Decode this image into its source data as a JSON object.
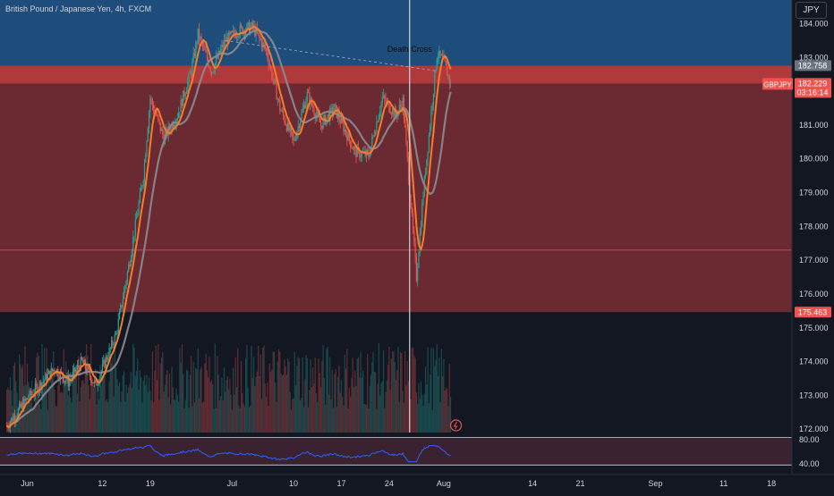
{
  "header": {
    "symbol_description": "British Pound / Japanese Yen, 4h, FXCM"
  },
  "price_axis": {
    "currency": "JPY",
    "ticks": [
      "184.000",
      "183.000",
      "181.000",
      "180.000",
      "179.000",
      "178.000",
      "177.000",
      "176.000",
      "175.000",
      "174.000",
      "173.000",
      "172.000"
    ]
  },
  "labels": {
    "level_upper": "182.758",
    "symbol_tag": "GBPJPY",
    "last_price": "182.229",
    "countdown": "03:16:14",
    "level_lower": "175.463",
    "annotation": "Death Cross"
  },
  "time_axis": {
    "ticks": [
      "Jun",
      "12",
      "19",
      "Jul",
      "10",
      "17",
      "24",
      "Aug",
      "14",
      "21",
      "Sep",
      "11",
      "18"
    ]
  },
  "rsi": {
    "ticks": [
      "80.00",
      "40.00"
    ]
  },
  "colors": {
    "background": "#131722",
    "zone_blue": "#1e4d7b",
    "zone_red": "#6b2a31",
    "band_red": "#b0393c",
    "candle_up": "#26a69a",
    "candle_down": "#ef5350",
    "ema_fast": "#f57c2a",
    "ma_slow": "#8b8b93",
    "rsi_line": "#2962ff",
    "vertical_marker": "#d1d4dc"
  },
  "chart_data": {
    "type": "candlestick",
    "symbol": "GBPJPY",
    "timeframe": "4h",
    "exchange": "FXCM",
    "currency": "JPY",
    "y_range": [
      171.9,
      184.7
    ],
    "zones": {
      "blue_top_zone": [
        182.758,
        184.7
      ],
      "red_zone": [
        175.463,
        182.758
      ],
      "red_band": [
        182.229,
        182.758
      ],
      "line_level": 177.3
    },
    "annotation": {
      "text": "Death Cross",
      "date": "Jul 27"
    },
    "last_price": 182.229,
    "price_path": [
      {
        "t": "May 29",
        "p": 172.1
      },
      {
        "t": "Jun 1",
        "p": 172.9
      },
      {
        "t": "Jun 5",
        "p": 173.8
      },
      {
        "t": "Jun 7",
        "p": 173.4
      },
      {
        "t": "Jun 9",
        "p": 174.0
      },
      {
        "t": "Jun 11",
        "p": 173.3
      },
      {
        "t": "Jun 14",
        "p": 174.8
      },
      {
        "t": "Jun 16",
        "p": 177.0
      },
      {
        "t": "Jun 18",
        "p": 179.5
      },
      {
        "t": "Jun 19",
        "p": 181.8
      },
      {
        "t": "Jun 21",
        "p": 180.6
      },
      {
        "t": "Jun 23",
        "p": 181.3
      },
      {
        "t": "Jun 25",
        "p": 182.6
      },
      {
        "t": "Jun 26",
        "p": 183.7
      },
      {
        "t": "Jun 28",
        "p": 182.6
      },
      {
        "t": "Jun 30",
        "p": 183.5
      },
      {
        "t": "Jul 2",
        "p": 183.8
      },
      {
        "t": "Jul 4",
        "p": 183.9
      },
      {
        "t": "Jul 6",
        "p": 183.2
      },
      {
        "t": "Jul 8",
        "p": 181.5
      },
      {
        "t": "Jul 10",
        "p": 180.5
      },
      {
        "t": "Jul 12",
        "p": 181.9
      },
      {
        "t": "Jul 14",
        "p": 181.0
      },
      {
        "t": "Jul 16",
        "p": 181.5
      },
      {
        "t": "Jul 19",
        "p": 180.2
      },
      {
        "t": "Jul 21",
        "p": 180.1
      },
      {
        "t": "Jul 23",
        "p": 181.8
      },
      {
        "t": "Jul 25",
        "p": 181.3
      },
      {
        "t": "Jul 26",
        "p": 181.7
      },
      {
        "t": "Jul 28",
        "p": 176.5
      },
      {
        "t": "Jul 29",
        "p": 179.0
      },
      {
        "t": "Jul 31",
        "p": 183.1
      },
      {
        "t": "Aug 1",
        "p": 182.9
      },
      {
        "t": "Aug 2",
        "p": 182.2
      }
    ],
    "rsi_levels": [
      80,
      40
    ]
  }
}
